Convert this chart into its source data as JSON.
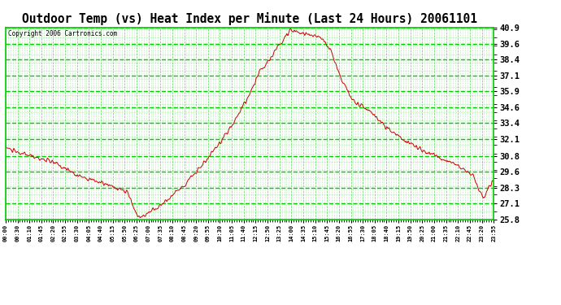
{
  "title": "Outdoor Temp (vs) Heat Index per Minute (Last 24 Hours) 20061101",
  "copyright": "Copyright 2006 Cartronics.com",
  "plot_bg_color": "#ffffff",
  "line_color": "#cc0000",
  "grid_major_color": "#00cc00",
  "grid_minor_color": "#00cc00",
  "text_color": "#000000",
  "yticks": [
    25.8,
    27.1,
    28.3,
    29.6,
    30.8,
    32.1,
    33.4,
    34.6,
    35.9,
    37.1,
    38.4,
    39.6,
    40.9
  ],
  "ylim": [
    25.8,
    40.9
  ],
  "xtick_labels": [
    "00:00",
    "00:30",
    "01:10",
    "01:45",
    "02:20",
    "02:55",
    "03:30",
    "04:05",
    "04:40",
    "05:15",
    "05:50",
    "06:25",
    "07:00",
    "07:35",
    "08:10",
    "08:45",
    "09:20",
    "09:55",
    "10:30",
    "11:05",
    "11:40",
    "12:15",
    "12:50",
    "13:25",
    "14:00",
    "14:35",
    "15:10",
    "15:45",
    "16:20",
    "16:55",
    "17:30",
    "18:05",
    "18:40",
    "19:15",
    "19:50",
    "20:25",
    "21:00",
    "21:35",
    "22:10",
    "22:45",
    "23:20",
    "23:55"
  ]
}
